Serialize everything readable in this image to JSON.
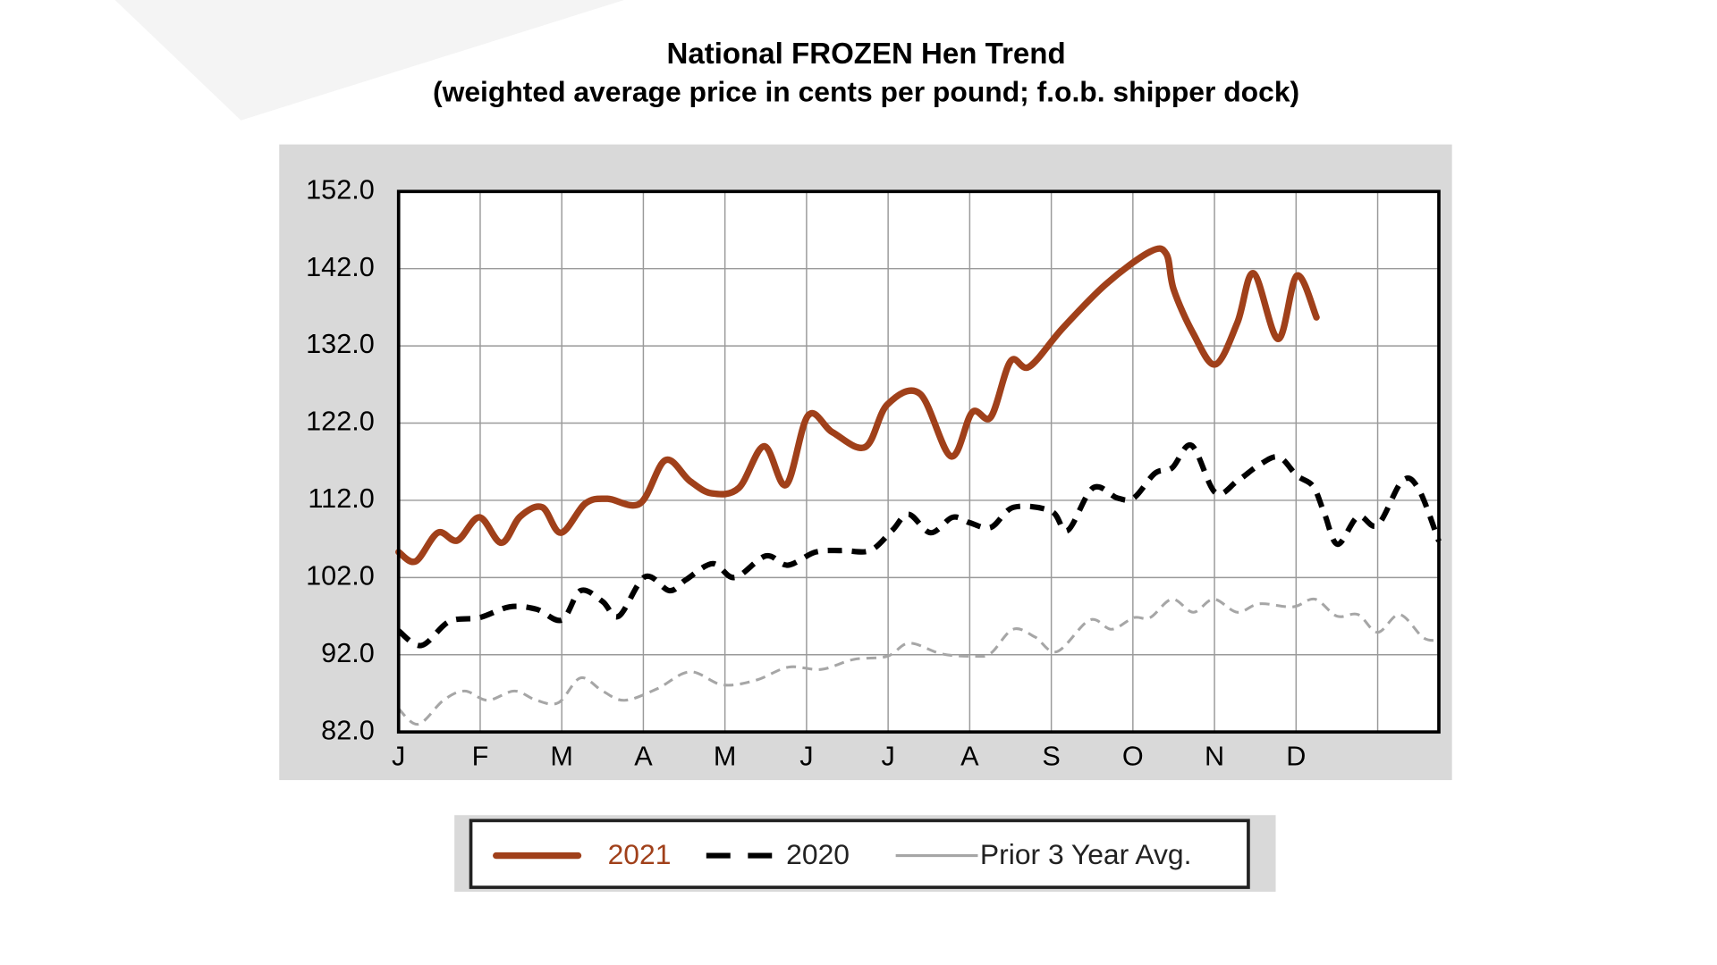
{
  "chart_data": {
    "type": "line",
    "title": "National FROZEN Hen Trend",
    "subtitle": "(weighted average price in cents per pound; f.o.b. shipper dock)",
    "xlim": [
      0,
      12.75
    ],
    "xticks": [
      {
        "value": 0,
        "label": "J"
      },
      {
        "value": 1,
        "label": "F"
      },
      {
        "value": 2,
        "label": "M"
      },
      {
        "value": 3,
        "label": "A"
      },
      {
        "value": 4,
        "label": "M"
      },
      {
        "value": 5,
        "label": "J"
      },
      {
        "value": 6,
        "label": "J"
      },
      {
        "value": 7,
        "label": "A"
      },
      {
        "value": 8,
        "label": "S"
      },
      {
        "value": 9,
        "label": "O"
      },
      {
        "value": 10,
        "label": "N"
      },
      {
        "value": 11,
        "label": "D"
      },
      12
    ],
    "ylim": [
      82,
      152
    ],
    "yticks": [
      {
        "value": 82,
        "label": "82.0"
      },
      {
        "value": 92,
        "label": "92.0"
      },
      {
        "value": 102,
        "label": "102.0"
      },
      {
        "value": 112,
        "label": "112.0"
      },
      {
        "value": 122,
        "label": "122.0"
      },
      {
        "value": 132,
        "label": "132.0"
      },
      {
        "value": 142,
        "label": "142.0"
      },
      {
        "value": 152,
        "label": "152.0"
      }
    ],
    "grid": true,
    "legend": "bottom",
    "series": [
      {
        "name": "2021",
        "color": "#a0401a",
        "line_style": "solid",
        "x": [
          0,
          0.21,
          0.48,
          0.72,
          0.99,
          1.26,
          1.49,
          1.76,
          1.99,
          2.29,
          2.56,
          2.96,
          3.27,
          3.57,
          3.84,
          4.17,
          4.48,
          4.75,
          5.02,
          5.32,
          5.72,
          5.99,
          6.39,
          6.77,
          7.03,
          7.26,
          7.5,
          7.73,
          8.14,
          8.67,
          9.21,
          9.41,
          9.5,
          9.74,
          10.01,
          10.28,
          10.48,
          10.78,
          11.01,
          11.25
        ],
        "values": [
          105.3,
          104.1,
          107.8,
          106.8,
          109.8,
          106.5,
          109.9,
          111.1,
          107.8,
          111.6,
          112.2,
          111.6,
          117.2,
          114.5,
          112.9,
          113.6,
          119.0,
          114.0,
          123.0,
          120.8,
          118.9,
          124.4,
          125.8,
          117.7,
          123.4,
          122.8,
          130.0,
          129.3,
          134.3,
          140.0,
          144.2,
          143.9,
          139.3,
          133.6,
          129.6,
          135.0,
          141.4,
          132.9,
          141.1,
          135.7
        ]
      },
      {
        "name": "2020",
        "color": "#000000",
        "line_style": "dashed",
        "x": [
          0,
          0.28,
          0.62,
          0.99,
          1.36,
          1.69,
          2.0,
          2.23,
          2.5,
          2.7,
          3.02,
          3.32,
          3.52,
          3.85,
          4.12,
          4.5,
          4.77,
          5.11,
          5.44,
          5.78,
          6.05,
          6.25,
          6.52,
          6.79,
          7.0,
          7.26,
          7.54,
          8.0,
          8.2,
          8.51,
          8.81,
          9.01,
          9.27,
          9.48,
          9.72,
          10.01,
          10.28,
          10.55,
          10.79,
          11.01,
          11.21,
          11.35,
          11.51,
          11.76,
          12.0,
          12.3,
          12.5,
          12.75
        ],
        "values": [
          95.1,
          93.2,
          96.3,
          96.8,
          98.2,
          97.9,
          96.5,
          100.3,
          98.9,
          97.0,
          102.1,
          100.3,
          101.7,
          103.8,
          102.0,
          104.8,
          103.6,
          105.3,
          105.5,
          105.5,
          108.1,
          110.2,
          107.8,
          109.8,
          109.1,
          108.5,
          111.1,
          110.6,
          108.1,
          113.6,
          112.3,
          112.3,
          115.5,
          116.2,
          119.1,
          113.0,
          114.5,
          116.6,
          117.6,
          115.2,
          113.8,
          110.2,
          106.3,
          109.9,
          108.8,
          114.5,
          113.5,
          106.7
        ]
      },
      {
        "name": "Prior 3 Year Avg.",
        "color": "#a6a6a6",
        "line_style": "dotted",
        "x": [
          0,
          0.24,
          0.55,
          0.81,
          1.09,
          1.42,
          1.69,
          1.96,
          2.23,
          2.5,
          2.77,
          3.17,
          3.57,
          3.97,
          4.38,
          4.78,
          5.18,
          5.58,
          5.99,
          6.26,
          6.66,
          7.06,
          7.26,
          7.53,
          7.8,
          8.07,
          8.47,
          8.74,
          9.01,
          9.21,
          9.48,
          9.74,
          9.99,
          10.28,
          10.55,
          10.96,
          11.23,
          11.5,
          11.76,
          12.0,
          12.27,
          12.56,
          12.75
        ],
        "values": [
          85.0,
          83.0,
          86.1,
          87.3,
          86.1,
          87.3,
          86.1,
          85.8,
          89.0,
          87.3,
          86.1,
          87.6,
          89.8,
          88.1,
          88.7,
          90.4,
          90.1,
          91.4,
          91.8,
          93.5,
          92.1,
          91.8,
          92.2,
          95.3,
          94.3,
          92.4,
          96.5,
          95.3,
          96.8,
          96.8,
          99.2,
          97.5,
          99.2,
          97.5,
          98.6,
          98.2,
          99.2,
          97.0,
          97.2,
          94.9,
          97.2,
          94.2,
          93.9
        ]
      }
    ]
  }
}
